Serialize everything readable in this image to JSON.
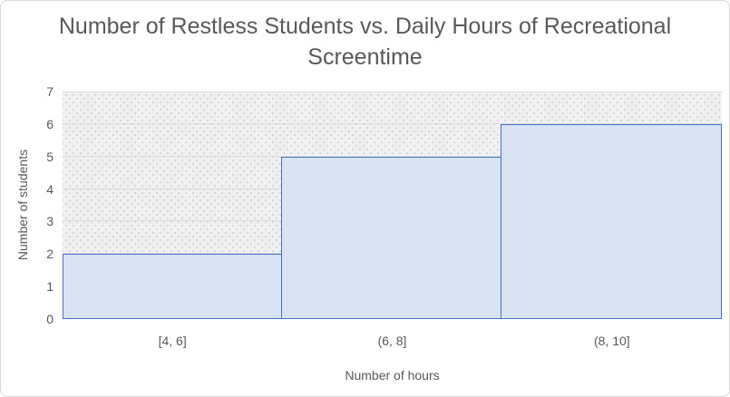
{
  "chart_data": {
    "type": "bar",
    "subtype": "histogram",
    "title": "Number of Restless Students vs. Daily Hours of Recreational\nScreentime",
    "categories": [
      "[4, 6]",
      "(6, 8]",
      "(8, 10]"
    ],
    "values": [
      2,
      5,
      6
    ],
    "xlabel": "Number of hours",
    "ylabel": "Number of students",
    "ylim": [
      0,
      7
    ],
    "ytick_step": 1,
    "yticks": [
      0,
      1,
      2,
      3,
      4,
      5,
      6,
      7
    ],
    "bar_gap": 0,
    "grid": "horizontal",
    "legend": "none",
    "colors": {
      "bar_fill": "#DAE3F3",
      "bar_border": "#4472C4",
      "text": "#595959",
      "gridline": "#D9D9D9",
      "plot_background": "#F1F1F1",
      "plot_dot": "#D4D4D4",
      "chart_border": "#D9D9D9",
      "chart_background": "#FFFFFF"
    }
  }
}
